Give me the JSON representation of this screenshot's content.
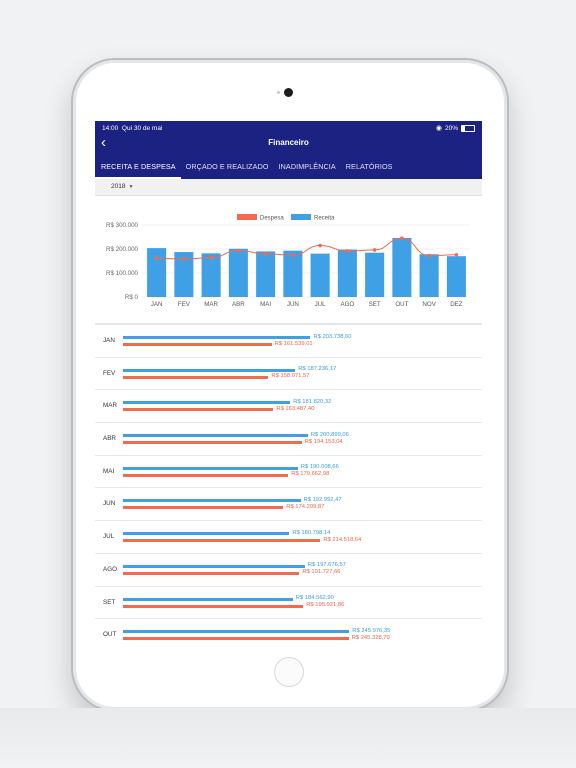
{
  "status": {
    "time": "14:00",
    "date": "Qui 30 de mai",
    "battery": "20%"
  },
  "header": {
    "title": "Financeiro"
  },
  "tabs": [
    {
      "label": "RECEITA E DESPESA",
      "active": true
    },
    {
      "label": "ORÇADO E REALIZADO",
      "active": false
    },
    {
      "label": "INADIMPLÊNCIA",
      "active": false
    },
    {
      "label": "RELATÓRIOS",
      "active": false
    }
  ],
  "filter": {
    "year": "2018"
  },
  "colors": {
    "nav": "#1b2282",
    "receita": "#3fa0e6",
    "despesa": "#f36a4f"
  },
  "chart_data": {
    "type": "bar",
    "title": "",
    "legend": [
      "Despesa",
      "Receita"
    ],
    "legend_position": "top-center",
    "categories": [
      "JAN",
      "FEV",
      "MAR",
      "ABR",
      "MAI",
      "JUN",
      "JUL",
      "AGO",
      "SET",
      "OUT",
      "NOV",
      "DEZ"
    ],
    "yticks": [
      "R$ 0",
      "R$ 100.000",
      "R$ 200.000",
      "R$ 300.000"
    ],
    "ylim": [
      0,
      300000
    ],
    "grid": true,
    "series": [
      {
        "name": "Receita",
        "type": "bar",
        "values": [
          203738.6,
          187236.17,
          181820.32,
          200899.06,
          190008.66,
          192992.47,
          180798.14,
          197676.57,
          184562.9,
          245976.35,
          178000,
          170000
        ]
      },
      {
        "name": "Despesa",
        "type": "line",
        "values": [
          161539.01,
          158071.57,
          163487.4,
          194153.04,
          179662.98,
          174209.87,
          214518.64,
          191727.66,
          195921.86,
          245328.7,
          172000,
          176000
        ]
      }
    ]
  },
  "list": {
    "max": 250000,
    "rows": [
      {
        "month": "JAN",
        "receita": 203738.6,
        "receita_label": "R$ 203.738,60",
        "despesa": 161539.01,
        "despesa_label": "R$ 161.539,01"
      },
      {
        "month": "FEV",
        "receita": 187236.17,
        "receita_label": "R$ 187.236,17",
        "despesa": 158071.57,
        "despesa_label": "R$ 158.071,57"
      },
      {
        "month": "MAR",
        "receita": 181820.32,
        "receita_label": "R$ 181.820,32",
        "despesa": 163487.4,
        "despesa_label": "R$ 163.487,40"
      },
      {
        "month": "ABR",
        "receita": 200899.06,
        "receita_label": "R$ 200.899,06",
        "despesa": 194153.04,
        "despesa_label": "R$ 194.153,04"
      },
      {
        "month": "MAI",
        "receita": 190008.66,
        "receita_label": "R$ 190.008,66",
        "despesa": 179662.98,
        "despesa_label": "R$ 179.662,98"
      },
      {
        "month": "JUN",
        "receita": 192992.47,
        "receita_label": "R$ 192.992,47",
        "despesa": 174209.87,
        "despesa_label": "R$ 174.209,87"
      },
      {
        "month": "JUL",
        "receita": 180798.14,
        "receita_label": "R$ 180.798,14",
        "despesa": 214518.64,
        "despesa_label": "R$ 214.518,64"
      },
      {
        "month": "AGO",
        "receita": 197676.57,
        "receita_label": "R$ 197.676,57",
        "despesa": 191727.66,
        "despesa_label": "R$ 191.727,66"
      },
      {
        "month": "SET",
        "receita": 184562.9,
        "receita_label": "R$ 184.562,90",
        "despesa": 195921.86,
        "despesa_label": "R$ 195.921,86"
      },
      {
        "month": "OUT",
        "receita": 245976.35,
        "receita_label": "R$ 245.976,35",
        "despesa": 245328.7,
        "despesa_label": "R$ 245.328,70"
      }
    ]
  }
}
